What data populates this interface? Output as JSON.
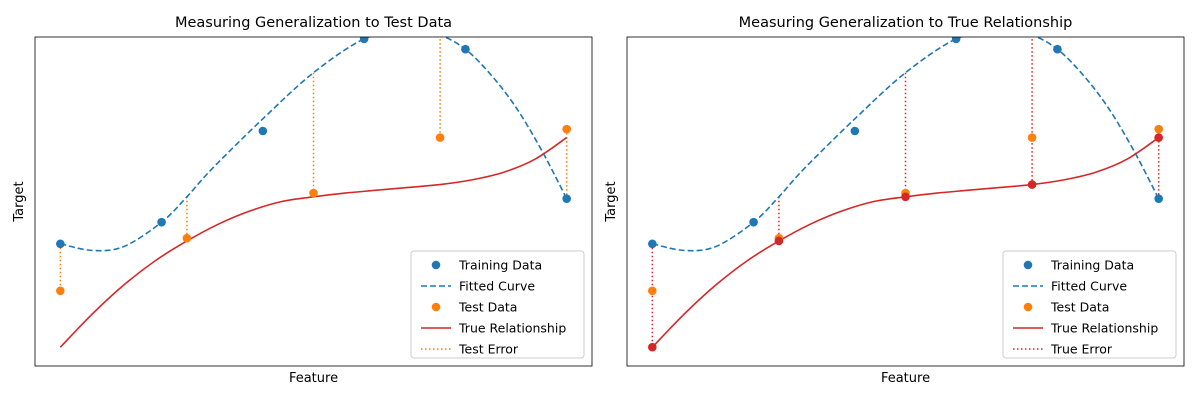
{
  "chart_data": [
    {
      "type": "scatter",
      "title": "Measuring Generalization to Test Data",
      "xlabel": "Feature",
      "ylabel": "Target",
      "xlim": [
        -0.2,
        4.2
      ],
      "ylim": [
        -0.2,
        3.3
      ],
      "grid": false,
      "legend_position": "bottom-right",
      "series": [
        {
          "name": "Training Data",
          "kind": "scatter",
          "color": "#1f77b4",
          "x": [
            0,
            0.8,
            1.6,
            2.4,
            3.2,
            4.0
          ],
          "y": [
            1.1,
            1.33,
            2.3,
            3.28,
            3.17,
            1.58
          ]
        },
        {
          "name": "Fitted Curve",
          "kind": "line",
          "style": "dashed",
          "color": "#1f77b4",
          "x": [
            0,
            0.25,
            0.5,
            0.8,
            1.0,
            1.2,
            1.6,
            2.0,
            2.4,
            2.7,
            2.8,
            3.0,
            3.2,
            3.4,
            3.6,
            3.8,
            4.0
          ],
          "y": [
            1.1,
            1.03,
            1.07,
            1.33,
            1.6,
            1.9,
            2.43,
            2.92,
            3.28,
            3.36,
            3.36,
            3.32,
            3.17,
            2.9,
            2.55,
            2.1,
            1.58
          ]
        },
        {
          "name": "Test Data",
          "kind": "scatter",
          "color": "#ff7f0e",
          "x": [
            0,
            1.0,
            2.0,
            3.0,
            4.0
          ],
          "y": [
            0.6,
            1.16,
            1.64,
            2.23,
            2.32
          ]
        },
        {
          "name": "True Relationship",
          "kind": "line",
          "style": "solid",
          "color": "#d62728",
          "x": [
            0,
            0.25,
            0.5,
            0.75,
            1.0,
            1.25,
            1.5,
            1.75,
            2.0,
            2.25,
            2.5,
            2.75,
            3.0,
            3.25,
            3.5,
            3.75,
            4.0
          ],
          "y": [
            0.0,
            0.35,
            0.66,
            0.92,
            1.13,
            1.31,
            1.45,
            1.55,
            1.6,
            1.64,
            1.67,
            1.7,
            1.73,
            1.78,
            1.86,
            2.0,
            2.23
          ]
        },
        {
          "name": "Test Error",
          "kind": "error",
          "style": "dotted",
          "color": "#ff7f0e",
          "x": [
            0,
            1.0,
            2.0,
            3.0,
            4.0
          ],
          "y1": [
            1.1,
            1.6,
            2.92,
            3.32,
            1.58
          ],
          "y2": [
            0.6,
            1.16,
            1.64,
            2.23,
            2.32
          ]
        }
      ]
    },
    {
      "type": "scatter",
      "title": "Measuring Generalization to True Relationship",
      "xlabel": "Feature",
      "ylabel": "Target",
      "xlim": [
        -0.2,
        4.2
      ],
      "ylim": [
        -0.2,
        3.3
      ],
      "grid": false,
      "legend_position": "bottom-right",
      "series": [
        {
          "name": "Training Data",
          "kind": "scatter",
          "color": "#1f77b4",
          "x": [
            0,
            0.8,
            1.6,
            2.4,
            3.2,
            4.0
          ],
          "y": [
            1.1,
            1.33,
            2.3,
            3.28,
            3.17,
            1.58
          ]
        },
        {
          "name": "Fitted Curve",
          "kind": "line",
          "style": "dashed",
          "color": "#1f77b4",
          "x": [
            0,
            0.25,
            0.5,
            0.8,
            1.0,
            1.2,
            1.6,
            2.0,
            2.4,
            2.7,
            2.8,
            3.0,
            3.2,
            3.4,
            3.6,
            3.8,
            4.0
          ],
          "y": [
            1.1,
            1.03,
            1.07,
            1.33,
            1.6,
            1.9,
            2.43,
            2.92,
            3.28,
            3.36,
            3.36,
            3.32,
            3.17,
            2.9,
            2.55,
            2.1,
            1.58
          ]
        },
        {
          "name": "Test Data",
          "kind": "scatter",
          "color": "#ff7f0e",
          "x": [
            0,
            1.0,
            2.0,
            3.0,
            4.0
          ],
          "y": [
            0.6,
            1.16,
            1.64,
            2.23,
            2.32
          ]
        },
        {
          "name": "True Relationship",
          "kind": "line",
          "style": "solid",
          "color": "#d62728",
          "x": [
            0,
            0.25,
            0.5,
            0.75,
            1.0,
            1.25,
            1.5,
            1.75,
            2.0,
            2.25,
            2.5,
            2.75,
            3.0,
            3.25,
            3.5,
            3.75,
            4.0
          ],
          "y": [
            0.0,
            0.35,
            0.66,
            0.92,
            1.13,
            1.31,
            1.45,
            1.55,
            1.6,
            1.64,
            1.67,
            1.7,
            1.73,
            1.78,
            1.86,
            2.0,
            2.23
          ]
        },
        {
          "name": "True Error",
          "kind": "error",
          "style": "dotted",
          "color": "#d62728",
          "markers": true,
          "x": [
            0,
            1.0,
            2.0,
            3.0,
            4.0
          ],
          "y1": [
            1.1,
            1.6,
            2.92,
            3.32,
            1.58
          ],
          "y2": [
            0.0,
            1.13,
            1.6,
            1.73,
            2.23
          ]
        }
      ]
    }
  ]
}
